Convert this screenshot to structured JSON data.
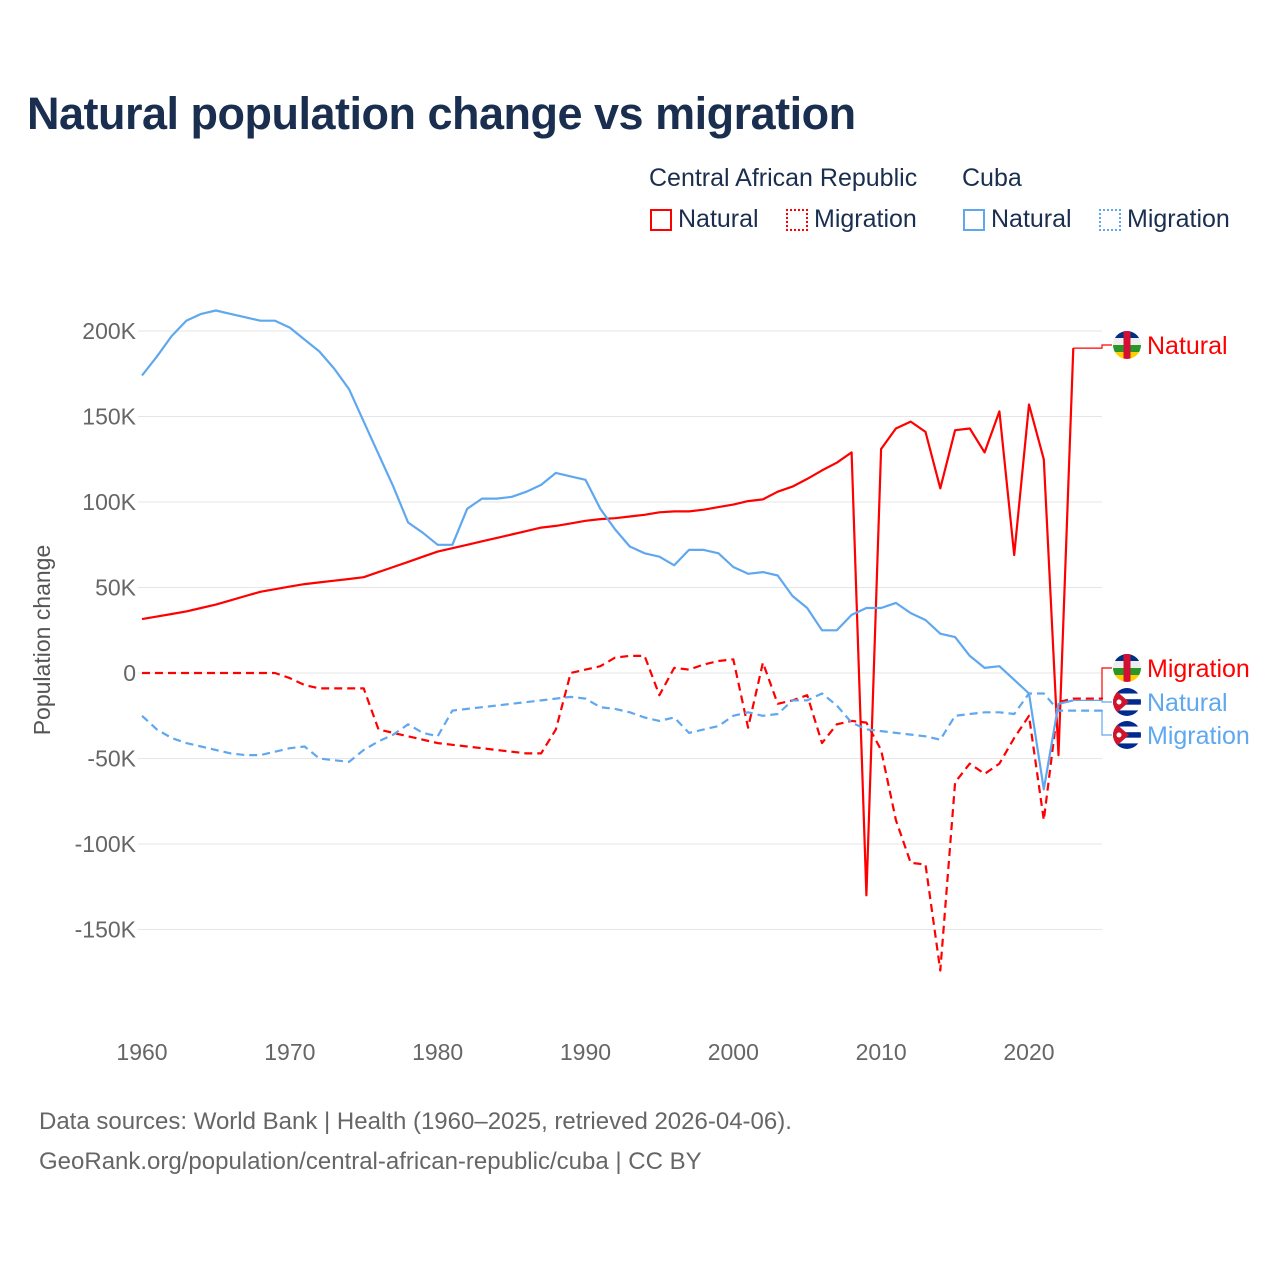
{
  "title": "Natural population change vs migration",
  "legend": {
    "groups": [
      "Central African Republic",
      "Cuba"
    ],
    "items": [
      {
        "label": "Natural",
        "color": "#ff0000",
        "style": "solid"
      },
      {
        "label": "Migration",
        "color": "#ff0000",
        "style": "dotted"
      },
      {
        "label": "Natural",
        "color": "#5fa8ef",
        "style": "solid"
      },
      {
        "label": "Migration",
        "color": "#5fa8ef",
        "style": "dotted"
      }
    ]
  },
  "source": {
    "line1": "Data sources: World Bank | Health (1960–2025, retrieved 2026-04-06).",
    "line2": "GeoRank.org/population/central-african-republic/cuba | CC BY"
  },
  "chart_data": {
    "type": "line",
    "title": "Natural population change vs migration",
    "xlabel": "",
    "ylabel": "Population change",
    "xlim": [
      1960,
      2025
    ],
    "ylim": [
      -175000,
      215000
    ],
    "grid": true,
    "legend_position": "top-right",
    "x_ticks": [
      1960,
      1970,
      1980,
      1990,
      2000,
      2010,
      2020
    ],
    "y_ticks": [
      {
        "v": 200000,
        "label": "200K"
      },
      {
        "v": 150000,
        "label": "150K"
      },
      {
        "v": 100000,
        "label": "100K"
      },
      {
        "v": 50000,
        "label": "50K"
      },
      {
        "v": 0,
        "label": "0"
      },
      {
        "v": -50000,
        "label": "-50K"
      },
      {
        "v": -100000,
        "label": "-100K"
      },
      {
        "v": -150000,
        "label": "-150K"
      }
    ],
    "series": [
      {
        "name": "Central African Republic Natural",
        "end_label": "Natural",
        "color": "#ff0000",
        "dash": false,
        "start": 1960,
        "values": [
          31500,
          33000,
          34500,
          36000,
          38000,
          40000,
          42500,
          45000,
          47500,
          49000,
          50500,
          52000,
          53000,
          54000,
          55000,
          56000,
          59000,
          62000,
          65000,
          68000,
          71000,
          73000,
          75000,
          77000,
          79000,
          81000,
          83000,
          85000,
          86000,
          87500,
          89000,
          90000,
          90500,
          91500,
          92500,
          94000,
          94500,
          94500,
          95500,
          97000,
          98500,
          100500,
          101500,
          106000,
          109000,
          113500,
          118500,
          123000,
          129000,
          -130000,
          131000,
          143000,
          147000,
          141000,
          108000,
          142000,
          143000,
          129000,
          153000,
          69000,
          157000,
          125000,
          -48000,
          190000
        ]
      },
      {
        "name": "Central African Republic Migration",
        "end_label": "Migration",
        "color": "#ff0000",
        "dash": true,
        "start": 1960,
        "values": [
          0,
          0,
          0,
          0,
          0,
          0,
          0,
          0,
          0,
          0,
          -3000,
          -7000,
          -9000,
          -9000,
          -9000,
          -9000,
          -33000,
          -35000,
          -37000,
          -39000,
          -41000,
          -42000,
          -43000,
          -44000,
          -45000,
          -46000,
          -47000,
          -47000,
          -33000,
          0,
          2000,
          4000,
          9000,
          10000,
          10000,
          -13000,
          3000,
          2000,
          5000,
          7000,
          8000,
          -32000,
          6000,
          -18000,
          -16000,
          -13000,
          -41000,
          -30000,
          -28000,
          -29000,
          -45000,
          -86000,
          -111000,
          -112000,
          -174000,
          -64000,
          -53000,
          -59000,
          -53000,
          -38000,
          -25000,
          -86000,
          -17000,
          -15000,
          -15000,
          -15000
        ]
      },
      {
        "name": "Cuba Natural",
        "end_label": "Natural",
        "color": "#5fa8ef",
        "dash": false,
        "start": 1960,
        "values": [
          174000,
          185000,
          197000,
          206000,
          210000,
          212000,
          210000,
          208000,
          206000,
          206000,
          202000,
          195000,
          188000,
          178000,
          166000,
          147000,
          128000,
          109000,
          88000,
          82000,
          75000,
          75000,
          96000,
          102000,
          102000,
          103000,
          106000,
          110000,
          117000,
          115000,
          113000,
          96000,
          84000,
          74000,
          70000,
          68000,
          63000,
          72000,
          72000,
          70000,
          62000,
          58000,
          59000,
          57000,
          45000,
          38000,
          25000,
          25000,
          34000,
          38000,
          38000,
          41000,
          35000,
          31000,
          23000,
          21000,
          10000,
          3000,
          4000,
          -4000,
          -12000,
          -68000,
          -18000,
          -16000
        ]
      },
      {
        "name": "Cuba Migration",
        "end_label": "Migration",
        "color": "#5fa8ef",
        "dash": true,
        "start": 1960,
        "values": [
          -25000,
          -33000,
          -38000,
          -41000,
          -43000,
          -45000,
          -47000,
          -48000,
          -48000,
          -46000,
          -44000,
          -43000,
          -50000,
          -51000,
          -52000,
          -45000,
          -40000,
          -36000,
          -30000,
          -35000,
          -37000,
          -22000,
          -21000,
          -20000,
          -19000,
          -18000,
          -17000,
          -16000,
          -15000,
          -14000,
          -15000,
          -20000,
          -21000,
          -23000,
          -26000,
          -28000,
          -26000,
          -35000,
          -33000,
          -31000,
          -25000,
          -23000,
          -25000,
          -24000,
          -16000,
          -16000,
          -12000,
          -19000,
          -29000,
          -33000,
          -34000,
          -35000,
          -36000,
          -37000,
          -39000,
          -25000,
          -24000,
          -23000,
          -23000,
          -24000,
          -12000,
          -12000,
          -22000,
          -22000,
          -22000,
          -22000
        ]
      }
    ]
  }
}
